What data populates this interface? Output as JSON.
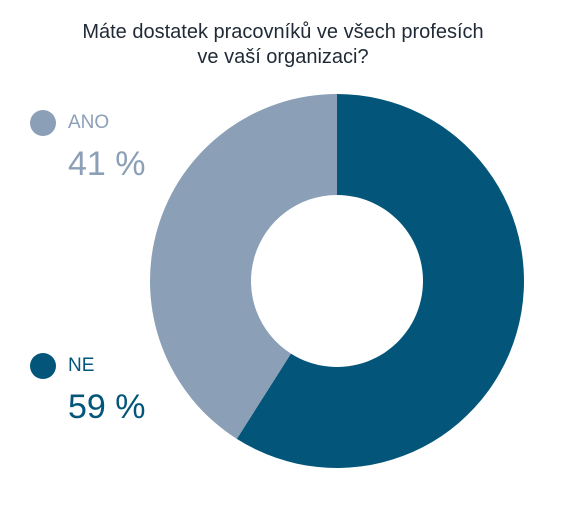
{
  "chart_data": {
    "type": "pie",
    "title_lines": [
      "Máte dostatek pracovníků ve všech profesích",
      "ve vaší organizaci?"
    ],
    "slices": [
      {
        "label": "ANO",
        "value": 41,
        "value_text": "41 %",
        "color": "#8b9fb7"
      },
      {
        "label": "NE",
        "value": 59,
        "value_text": "59 %",
        "color": "#03567a"
      }
    ],
    "donut": true,
    "legend_position": "left"
  }
}
